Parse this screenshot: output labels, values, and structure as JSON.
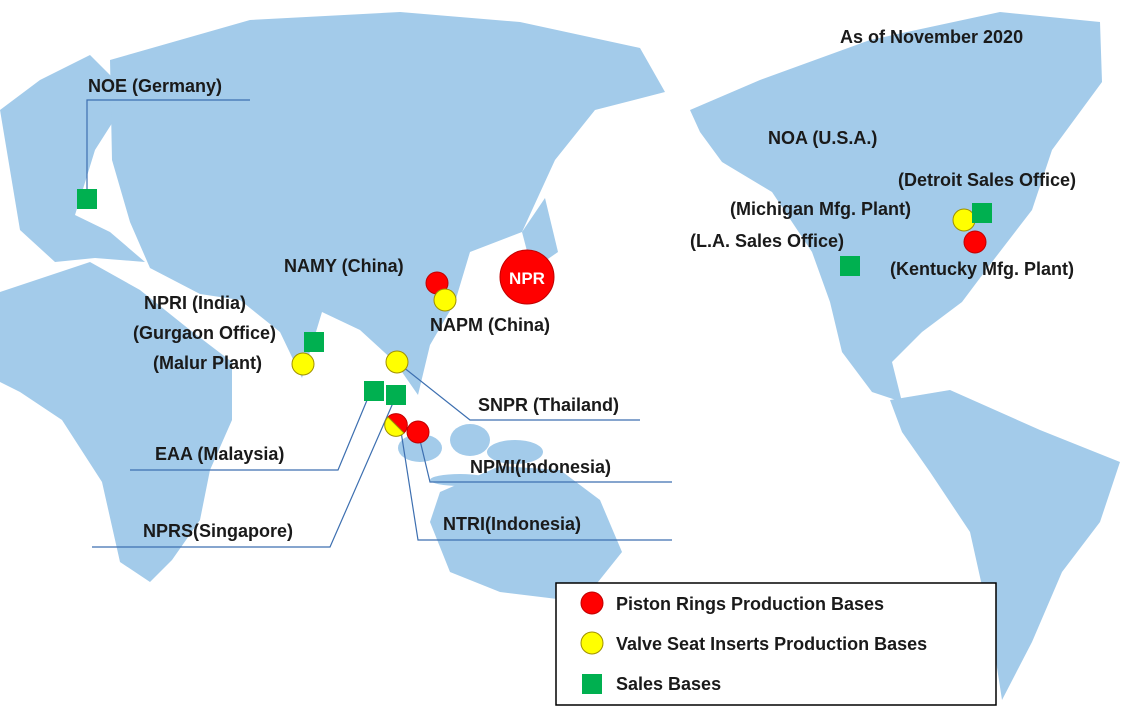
{
  "as_of": "As of November 2020",
  "hq": "NPR",
  "locations": {
    "noe": "NOE (Germany)",
    "noa": "NOA (U.S.A.)",
    "detroit": "(Detroit Sales Office)",
    "michigan": "(Michigan Mfg. Plant)",
    "la": "(L.A. Sales Office)",
    "kentucky": "(Kentucky Mfg. Plant)",
    "namy": "NAMY (China)",
    "napm": "NAPM (China)",
    "npri": "NPRI (India)",
    "gurgaon": "(Gurgaon Office)",
    "malur": "(Malur Plant)",
    "snpr": "SNPR (Thailand)",
    "eaa": "EAA (Malaysia)",
    "npmi": "NPMI(Indonesia)",
    "ntri": "NTRI(Indonesia)",
    "nprs": "NPRS(Singapore)"
  },
  "legend": [
    "Piston Rings Production Bases",
    "Valve Seat Inserts Production Bases",
    "Sales Bases"
  ]
}
